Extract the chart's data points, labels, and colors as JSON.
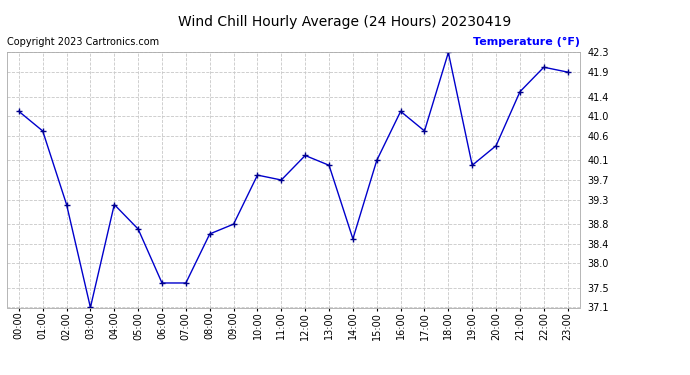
{
  "title": "Wind Chill Hourly Average (24 Hours) 20230419",
  "copyright": "Copyright 2023 Cartronics.com",
  "legend_label": "Temperature (°F)",
  "hours": [
    "00:00",
    "01:00",
    "02:00",
    "03:00",
    "04:00",
    "05:00",
    "06:00",
    "07:00",
    "08:00",
    "09:00",
    "10:00",
    "11:00",
    "12:00",
    "13:00",
    "14:00",
    "15:00",
    "16:00",
    "17:00",
    "18:00",
    "19:00",
    "20:00",
    "21:00",
    "22:00",
    "23:00"
  ],
  "values": [
    41.1,
    40.7,
    39.2,
    37.1,
    39.2,
    38.7,
    37.6,
    37.6,
    38.6,
    38.8,
    39.8,
    39.7,
    40.2,
    40.0,
    38.5,
    40.1,
    41.1,
    40.7,
    42.3,
    40.0,
    40.4,
    41.5,
    42.0,
    41.9
  ],
  "line_color": "#0000cc",
  "marker_color": "#00008b",
  "background_color": "#ffffff",
  "grid_color": "#c8c8c8",
  "title_color": "#000000",
  "copyright_color": "#000000",
  "legend_color": "#0000ff",
  "ymin": 37.1,
  "ymax": 42.3,
  "yticks": [
    37.1,
    37.5,
    38.0,
    38.4,
    38.8,
    39.3,
    39.7,
    40.1,
    40.6,
    41.0,
    41.4,
    41.9,
    42.3
  ],
  "title_fontsize": 10,
  "copyright_fontsize": 7,
  "legend_fontsize": 8,
  "tick_fontsize": 7
}
